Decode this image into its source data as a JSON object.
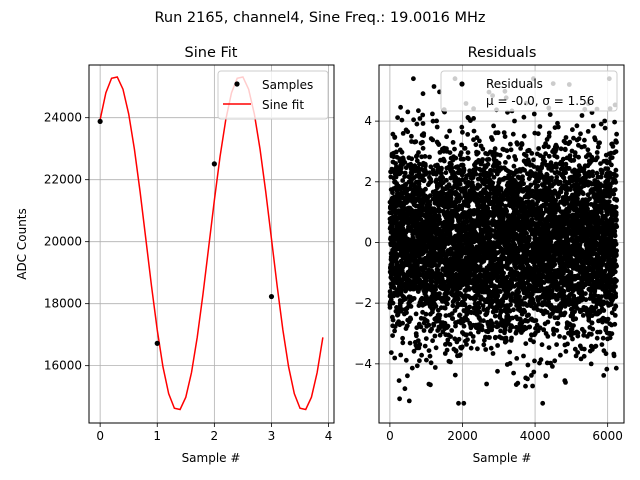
{
  "figure": {
    "suptitle": "Run 2165, channel4, Sine Freq.: 19.0016 MHz"
  },
  "chart_data": [
    {
      "type": "line",
      "title": "Sine Fit",
      "xlabel": "Sample #",
      "ylabel": "ADC Counts",
      "xlim": [
        -0.195,
        4.095
      ],
      "ylim": [
        14150,
        25700
      ],
      "xticks": [
        0,
        1,
        2,
        3,
        4
      ],
      "yticks": [
        16000,
        18000,
        20000,
        22000,
        24000
      ],
      "grid": true,
      "legend": {
        "position": "upper right",
        "entries": [
          "Samples",
          "Sine fit"
        ]
      },
      "series": [
        {
          "name": "Samples",
          "kind": "scatter",
          "color": "#000000",
          "x": [
            0,
            1,
            2,
            3
          ],
          "y": [
            23880,
            16720,
            22510,
            18230
          ]
        },
        {
          "name": "Sine fit",
          "kind": "line",
          "color": "#ff0000",
          "model": {
            "offset": 19950,
            "amplitude": 5400,
            "period": 2.2,
            "phase_deg": 47.6
          },
          "x_range": [
            0,
            3.9
          ],
          "x_step": 0.1
        }
      ]
    },
    {
      "type": "scatter",
      "title": "Residuals",
      "xlabel": "Sample #",
      "xlim": [
        -300,
        6450
      ],
      "ylim": [
        -5.95,
        5.85
      ],
      "xticks": [
        0,
        2000,
        4000,
        6000
      ],
      "yticks": [
        -4,
        -2,
        0,
        2,
        4
      ],
      "grid": true,
      "legend": {
        "position": "upper right",
        "entries": [
          "Residuals",
          "μ = -0.0, σ = 1.56"
        ]
      },
      "series": [
        {
          "name": "Residuals",
          "color": "#000000",
          "n_points": 6250,
          "mean": -0.0,
          "std": 1.56,
          "x_range": [
            0,
            6249
          ]
        }
      ],
      "annotation": {
        "mu_label": "μ = -0.0, σ = 1.56"
      }
    }
  ]
}
